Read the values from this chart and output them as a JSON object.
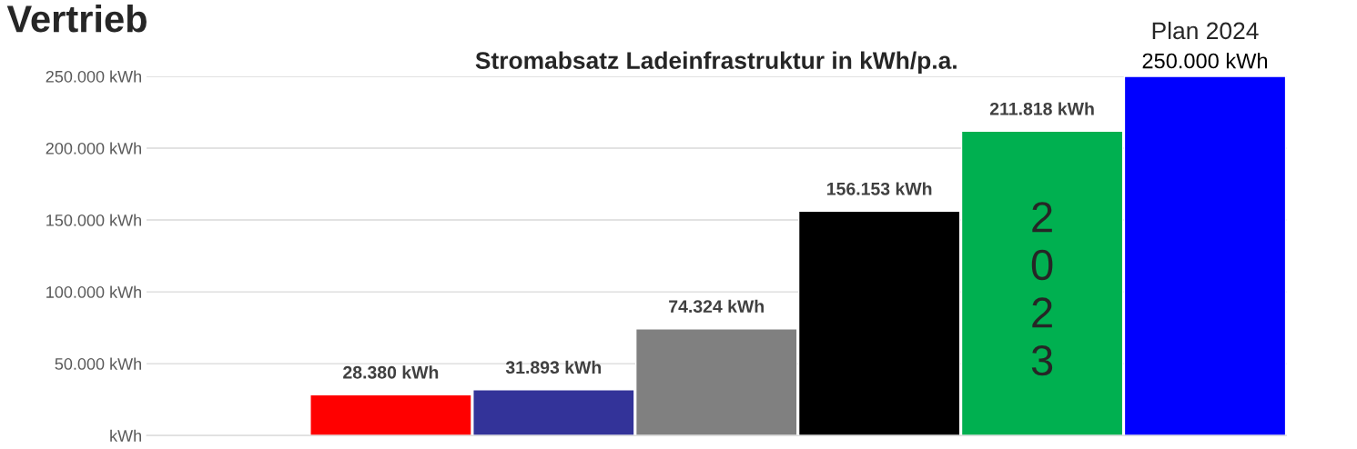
{
  "chart_data": {
    "type": "bar",
    "title": "Stromabsatz Ladeinfrastruktur in kWh/p.a.",
    "categories": [
      null,
      null,
      null,
      null,
      null,
      null,
      null
    ],
    "values": [
      null,
      28380,
      31893,
      74324,
      156153,
      211818,
      250000
    ],
    "colors": [
      "#ffffff",
      "#ff0000",
      "#333399",
      "#808080",
      "#000000",
      "#00b050",
      "#0000ff"
    ],
    "value_labels": [
      null,
      "28.380 kWh",
      "31.893 kWh",
      "74.324 kWh",
      "156.153 kWh",
      "211.818 kWh",
      "250.000 kWh"
    ],
    "ylim": [
      0,
      250000
    ],
    "yticks": [
      {
        "value": 0,
        "label": "kWh"
      },
      {
        "value": 50000,
        "label": "50.000 kWh"
      },
      {
        "value": 100000,
        "label": "100.000 kWh"
      },
      {
        "value": 150000,
        "label": "150.000 kWh"
      },
      {
        "value": 200000,
        "label": "200.000 kWh"
      },
      {
        "value": 250000,
        "label": "250.000 kWh"
      }
    ],
    "grid": "y",
    "annotations": [
      "Vertrieb",
      "2\n0\n2\n3",
      "Plan 2024"
    ]
  }
}
